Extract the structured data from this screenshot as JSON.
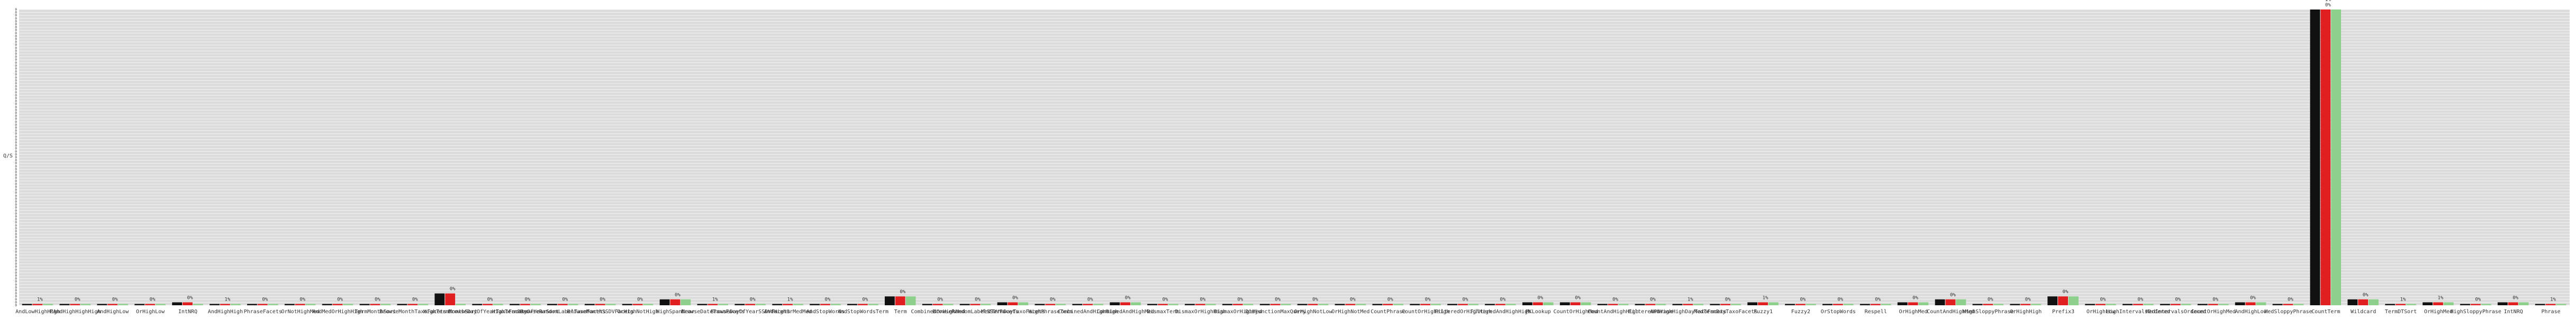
{
  "chart_data": {
    "type": "bar",
    "ylabel": "Q/S",
    "ylim": [
      0,
      100
    ],
    "grid": true,
    "background": "#dcdcdc",
    "colors": {
      "black": "#111111",
      "red": "#e02020",
      "green": "#8cd08c",
      "grid": "#ffffff"
    },
    "groups": [
      {
        "label": "AndLowHighHigh",
        "values": [
          0,
          0,
          0
        ],
        "labels": [
          "1%"
        ]
      },
      {
        "label": "PAndHighHighHigh",
        "values": [
          0,
          0,
          0
        ],
        "labels": [
          "0%"
        ]
      },
      {
        "label": "AndHighLow",
        "values": [
          0,
          0,
          0
        ],
        "labels": [
          "0%"
        ]
      },
      {
        "label": "OrHighLow",
        "values": [
          0,
          0,
          0
        ],
        "labels": [
          "0%"
        ]
      },
      {
        "label": "IntNRQ",
        "values": [
          1,
          1,
          0
        ],
        "labels": [
          "0%"
        ]
      },
      {
        "label": "AndHighHigh",
        "values": [
          0,
          0,
          0
        ],
        "labels": [
          "1%"
        ]
      },
      {
        "label": "PhraseFacets",
        "values": [
          0,
          0,
          0
        ],
        "labels": [
          "0%"
        ]
      },
      {
        "label": "OrNotHighMed",
        "values": [
          0,
          0,
          0
        ],
        "labels": [
          "0%"
        ]
      },
      {
        "label": "AndMedOrHighHigh",
        "values": [
          0,
          0,
          0
        ],
        "labels": [
          "0%"
        ]
      },
      {
        "label": "TermMonthSort",
        "values": [
          0,
          0,
          0
        ],
        "labels": [
          "0%"
        ]
      },
      {
        "label": "BrowseMonthTaxoFacets",
        "values": [
          0,
          0,
          0
        ],
        "labels": [
          "0%"
        ]
      },
      {
        "label": "HighTermMonthSort",
        "values": [
          4,
          4,
          0
        ],
        "labels": [
          "0%"
        ]
      },
      {
        "label": "BrowseDayOfYearTaxoFacets",
        "values": [
          0,
          0,
          0
        ],
        "labels": [
          "0%"
        ]
      },
      {
        "label": "HighTermDayOfYearSort",
        "values": [
          0,
          0,
          0
        ],
        "labels": [
          "0%"
        ]
      },
      {
        "label": "BrowseRandomLabelTaxoFacets",
        "values": [
          0,
          0,
          0
        ],
        "labels": [
          "0%"
        ]
      },
      {
        "label": "BrowseMonthSSDVFacets",
        "values": [
          0,
          0,
          0
        ],
        "labels": [
          "0%"
        ]
      },
      {
        "label": "OrHighNotHigh",
        "values": [
          0,
          0,
          0
        ],
        "labels": [
          "0%"
        ]
      },
      {
        "label": "HighSpanNear",
        "values": [
          2,
          2,
          2
        ],
        "labels": [
          "0%"
        ]
      },
      {
        "label": "BrowseDateTaxoFacets",
        "values": [
          0,
          0,
          0
        ],
        "labels": [
          "1%"
        ]
      },
      {
        "label": "BrowseDayOfYearSSDVFacets",
        "values": [
          0,
          0,
          0
        ],
        "labels": [
          "0%"
        ]
      },
      {
        "label": "AndHighOrMedMed",
        "values": [
          0,
          0,
          0
        ],
        "labels": [
          "1%"
        ]
      },
      {
        "label": "AndStopWords",
        "values": [
          0,
          0,
          0
        ],
        "labels": [
          "0%"
        ]
      },
      {
        "label": "AndStopWordsTerm",
        "values": [
          0,
          0,
          0
        ],
        "labels": [
          "0%"
        ]
      },
      {
        "label": "Term",
        "values": [
          3,
          3,
          3
        ],
        "labels": [
          "0%"
        ]
      },
      {
        "label": "CombinedOrHighMed",
        "values": [
          0,
          0,
          0
        ],
        "labels": [
          "0%"
        ]
      },
      {
        "label": "BrowseRandomLabelSSDVFacets",
        "values": [
          0,
          0,
          0
        ],
        "labels": [
          "0%"
        ]
      },
      {
        "label": "MedTermDayTaxoFacets",
        "values": [
          1,
          1,
          1
        ],
        "labels": [
          "0%"
        ]
      },
      {
        "label": "HighPhraseTerm",
        "values": [
          0,
          0,
          0
        ],
        "labels": [
          "0%"
        ]
      },
      {
        "label": "CombinedAndHighHigh",
        "values": [
          0,
          0,
          0
        ],
        "labels": [
          "0%"
        ]
      },
      {
        "label": "CombinedAndHighMed",
        "values": [
          1,
          1,
          1
        ],
        "labels": [
          "0%"
        ]
      },
      {
        "label": "DismaxTerm",
        "values": [
          0,
          0,
          0
        ],
        "labels": [
          "0%"
        ]
      },
      {
        "label": "DismaxOrHighHigh",
        "values": [
          0,
          0,
          0
        ],
        "labels": [
          "0%"
        ]
      },
      {
        "label": "DismaxOrHighMed",
        "values": [
          0,
          0,
          0
        ],
        "labels": [
          "0%"
        ]
      },
      {
        "label": "DisjunctionMaxQuery",
        "values": [
          0,
          0,
          0
        ],
        "labels": [
          "0%"
        ]
      },
      {
        "label": "OrHighNotLow",
        "values": [
          0,
          0,
          0
        ],
        "labels": [
          "0%"
        ]
      },
      {
        "label": "OrHighNotMed",
        "values": [
          0,
          0,
          0
        ],
        "labels": [
          "0%"
        ]
      },
      {
        "label": "CountPhrase",
        "values": [
          0,
          0,
          0
        ],
        "labels": [
          "0%"
        ]
      },
      {
        "label": "CountOrHighHigh",
        "values": [
          0,
          0,
          0
        ],
        "labels": [
          "0%"
        ]
      },
      {
        "label": "FilteredOrHighHigh",
        "values": [
          0,
          0,
          0
        ],
        "labels": [
          "0%"
        ]
      },
      {
        "label": "FilteredAndHighHigh",
        "values": [
          0,
          0,
          0
        ],
        "labels": [
          "0%"
        ]
      },
      {
        "label": "PKLookup",
        "values": [
          1,
          1,
          1
        ],
        "labels": [
          "0%"
        ]
      },
      {
        "label": "CountOrHighMed",
        "values": [
          1,
          1,
          1
        ],
        "labels": [
          "0%"
        ]
      },
      {
        "label": "CountAndHighHigh",
        "values": [
          0,
          0,
          0
        ],
        "labels": [
          "0%"
        ]
      },
      {
        "label": "FilteredPhrase",
        "values": [
          0,
          0,
          0
        ],
        "labels": [
          "0%"
        ]
      },
      {
        "label": "AndHighHighDayTaxoFacets",
        "values": [
          0,
          0,
          0
        ],
        "labels": [
          "1%"
        ]
      },
      {
        "label": "MedTermDayTaxoFacets",
        "values": [
          0,
          0,
          0
        ],
        "labels": [
          "0%"
        ]
      },
      {
        "label": "Fuzzy1",
        "values": [
          1,
          1,
          1
        ],
        "labels": [
          "1%"
        ]
      },
      {
        "label": "Fuzzy2",
        "values": [
          0,
          0,
          0
        ],
        "labels": [
          "0%"
        ]
      },
      {
        "label": "OrStopWords",
        "values": [
          0,
          0,
          0
        ],
        "labels": [
          "0%"
        ]
      },
      {
        "label": "Respell",
        "values": [
          0,
          0,
          0
        ],
        "labels": [
          "0%"
        ]
      },
      {
        "label": "OrHighMed",
        "values": [
          1,
          1,
          1
        ],
        "labels": [
          "0%"
        ]
      },
      {
        "label": "CountAndHighMed",
        "values": [
          2,
          2,
          2
        ],
        "labels": [
          "0%"
        ]
      },
      {
        "label": "HighSloppyPhrase",
        "values": [
          0,
          0,
          0
        ],
        "labels": [
          "0%"
        ]
      },
      {
        "label": "OrHighHigh",
        "values": [
          0,
          0,
          0
        ],
        "labels": [
          "0%"
        ]
      },
      {
        "label": "Prefix3",
        "values": [
          3,
          3,
          3
        ],
        "labels": [
          "0%"
        ]
      },
      {
        "label": "OrHighLow",
        "values": [
          0,
          0,
          0
        ],
        "labels": [
          "0%"
        ]
      },
      {
        "label": "HighIntervalsOrdered",
        "values": [
          0,
          0,
          0
        ],
        "labels": [
          "0%"
        ]
      },
      {
        "label": "MedIntervalsOrdered",
        "values": [
          0,
          0,
          0
        ],
        "labels": [
          "0%"
        ]
      },
      {
        "label": "CountOrHighMed",
        "values": [
          0,
          0,
          0
        ],
        "labels": [
          "0%"
        ]
      },
      {
        "label": "AndHighLow",
        "values": [
          1,
          1,
          1
        ],
        "labels": [
          "0%"
        ]
      },
      {
        "label": "MedSloppyPhrase",
        "values": [
          0,
          0,
          0
        ],
        "labels": [
          "0%"
        ]
      },
      {
        "label": "CountTerm",
        "values": [
          100,
          100,
          100
        ],
        "labels": [
          "0%",
          "1%",
          "0%"
        ]
      },
      {
        "label": "Wildcard",
        "values": [
          2,
          2,
          2
        ],
        "labels": [
          "0%"
        ]
      },
      {
        "label": "TermDTSort",
        "values": [
          0,
          0,
          0
        ],
        "labels": [
          "1%"
        ]
      },
      {
        "label": "OrHighMed",
        "values": [
          1,
          1,
          1
        ],
        "labels": [
          "1%"
        ]
      },
      {
        "label": "HighSloppyPhrase",
        "values": [
          0,
          0,
          0
        ],
        "labels": [
          "0%"
        ]
      },
      {
        "label": "IntNRQ",
        "values": [
          1,
          1,
          1
        ],
        "labels": [
          "0%"
        ]
      },
      {
        "label": "Phrase",
        "values": [
          0,
          0,
          0
        ],
        "labels": [
          "1%"
        ]
      }
    ],
    "yticks": [
      "0",
      "0",
      "0",
      "0",
      "0",
      "0",
      "0",
      "0",
      "0",
      "0",
      "0",
      "0",
      "0",
      "0",
      "0",
      "0",
      "0",
      "0",
      "0",
      "0",
      "0",
      "0",
      "0",
      "0",
      "0",
      "0",
      "0",
      "0",
      "0",
      "0",
      "0",
      "0",
      "0",
      "0",
      "0",
      "0",
      "0",
      "0",
      "0",
      "0",
      "0",
      "0",
      "0",
      "0",
      "0",
      "0",
      "0",
      "0",
      "0",
      "0",
      "0",
      "0",
      "0",
      "0",
      "0",
      "0",
      "0",
      "0",
      "0",
      "0",
      "0",
      "0",
      "0",
      "0",
      "0",
      "0",
      "0",
      "0",
      "0",
      "0",
      "0",
      "0",
      "0",
      "0",
      "0",
      "0",
      "0",
      "0",
      "0",
      "0",
      "0",
      "0",
      "0",
      "0",
      "0",
      "0",
      "0",
      "0",
      "0",
      "0",
      "0",
      "0",
      "0",
      "0",
      "0",
      "0",
      "0",
      "0",
      "0",
      "0",
      "0"
    ]
  }
}
